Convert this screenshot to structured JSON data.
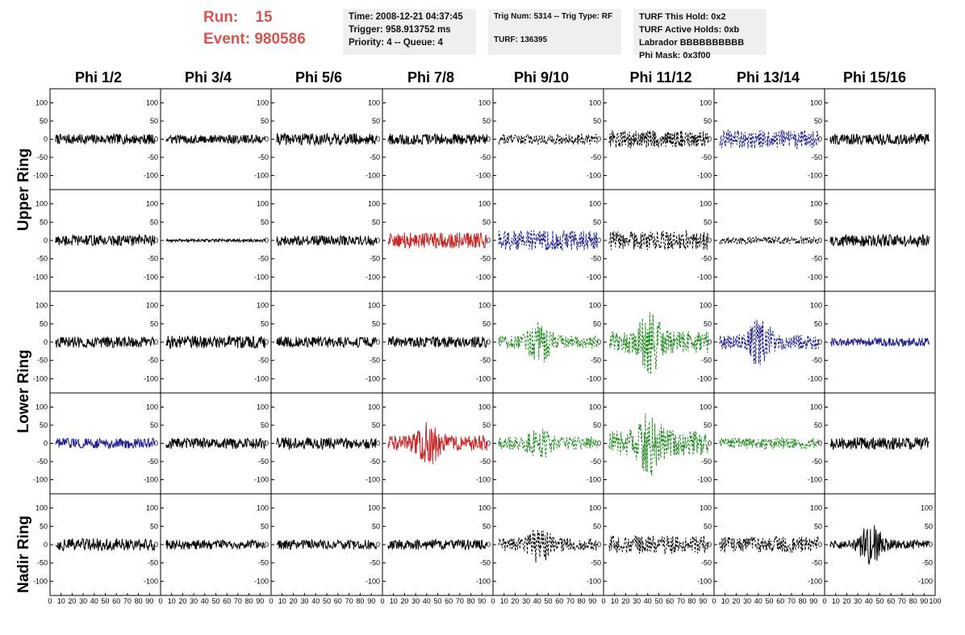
{
  "header": {
    "run_label": "Run:",
    "run_value": "15",
    "event_label": "Event:",
    "event_value": "980586",
    "time_line": "Time: 2008-12-21 04:37:45",
    "trigger_line": "Trigger: 958.913752 ms",
    "priority_line": "Priority: 4 -- Queue: 4",
    "trig_num_line": "Trig Num: 5314 -- Trig Type: RF",
    "turf_line": "TURF: 136395",
    "turf_hold_line": "TURF This Hold: 0x2",
    "turf_active_line": "TURF Active Holds: 0xb",
    "labrador_line": "Labrador BBBBBBBBBB",
    "phi_mask_line": "Phi Mask: 0x3f00"
  },
  "columns": [
    "Phi 1/2",
    "Phi 3/4",
    "Phi 5/6",
    "Phi 7/8",
    "Phi 9/10",
    "Phi 11/12",
    "Phi 13/14",
    "Phi 15/16"
  ],
  "ring_labels": [
    "Upper Ring",
    "Lower Ring",
    "Nadir Ring"
  ],
  "colors": {
    "black": "#000000",
    "blue": "#1f1f8f",
    "red": "#c62828",
    "green": "#1f8a1f"
  },
  "chart_data": {
    "type": "line",
    "rows": 5,
    "cols": 8,
    "xlim": [
      0,
      100
    ],
    "ylim": [
      -130,
      130
    ],
    "y_ticks": [
      100,
      50,
      0,
      -50,
      -100
    ],
    "x_tick_labels_row": [
      "0",
      "10",
      "20",
      "30",
      "40",
      "50",
      "60",
      "70",
      "80",
      "90",
      "100"
    ],
    "grid": false,
    "panels": [
      {
        "row": 0,
        "col": 0,
        "color": "black",
        "style": "solid",
        "amp": 14,
        "burst": 0
      },
      {
        "row": 0,
        "col": 1,
        "color": "black",
        "style": "solid",
        "amp": 12,
        "burst": 0
      },
      {
        "row": 0,
        "col": 2,
        "color": "black",
        "style": "solid",
        "amp": 16,
        "burst": 0
      },
      {
        "row": 0,
        "col": 3,
        "color": "black",
        "style": "solid",
        "amp": 15,
        "burst": 0
      },
      {
        "row": 0,
        "col": 4,
        "color": "black",
        "style": "dashed",
        "amp": 15,
        "burst": 0
      },
      {
        "row": 0,
        "col": 5,
        "color": "black",
        "style": "dashed",
        "amp": 24,
        "burst": 0
      },
      {
        "row": 0,
        "col": 6,
        "color": "blue",
        "style": "dashed",
        "amp": 26,
        "burst": 0
      },
      {
        "row": 0,
        "col": 7,
        "color": "black",
        "style": "solid",
        "amp": 15,
        "burst": 0
      },
      {
        "row": 1,
        "col": 0,
        "color": "black",
        "style": "solid",
        "amp": 15,
        "burst": 0
      },
      {
        "row": 1,
        "col": 1,
        "color": "black",
        "style": "solid",
        "amp": 4,
        "burst": 0
      },
      {
        "row": 1,
        "col": 2,
        "color": "black",
        "style": "solid",
        "amp": 14,
        "burst": 0
      },
      {
        "row": 1,
        "col": 3,
        "color": "red",
        "style": "solid",
        "amp": 22,
        "burst": 0
      },
      {
        "row": 1,
        "col": 4,
        "color": "blue",
        "style": "dashed",
        "amp": 28,
        "burst": 0
      },
      {
        "row": 1,
        "col": 5,
        "color": "black",
        "style": "dashed",
        "amp": 26,
        "burst": 0
      },
      {
        "row": 1,
        "col": 6,
        "color": "black",
        "style": "dashed",
        "amp": 10,
        "burst": 0
      },
      {
        "row": 1,
        "col": 7,
        "color": "black",
        "style": "solid",
        "amp": 17,
        "burst": 0
      },
      {
        "row": 2,
        "col": 0,
        "color": "black",
        "style": "solid",
        "amp": 15,
        "burst": 0
      },
      {
        "row": 2,
        "col": 1,
        "color": "black",
        "style": "solid",
        "amp": 17,
        "burst": 0
      },
      {
        "row": 2,
        "col": 2,
        "color": "black",
        "style": "solid",
        "amp": 15,
        "burst": 0
      },
      {
        "row": 2,
        "col": 3,
        "color": "black",
        "style": "solid",
        "amp": 15,
        "burst": 0
      },
      {
        "row": 2,
        "col": 4,
        "color": "green",
        "style": "dashed",
        "amp": 18,
        "burst": 45
      },
      {
        "row": 2,
        "col": 5,
        "color": "green",
        "style": "dashed",
        "amp": 30,
        "burst": 60
      },
      {
        "row": 2,
        "col": 6,
        "color": "blue",
        "style": "dashed",
        "amp": 20,
        "burst": 55
      },
      {
        "row": 2,
        "col": 7,
        "color": "blue",
        "style": "solid",
        "amp": 12,
        "burst": 0
      },
      {
        "row": 3,
        "col": 0,
        "color": "blue",
        "style": "solid",
        "amp": 14,
        "burst": 0
      },
      {
        "row": 3,
        "col": 1,
        "color": "black",
        "style": "solid",
        "amp": 15,
        "burst": 0
      },
      {
        "row": 3,
        "col": 2,
        "color": "black",
        "style": "solid",
        "amp": 16,
        "burst": 0
      },
      {
        "row": 3,
        "col": 3,
        "color": "red",
        "style": "solid",
        "amp": 22,
        "burst": 40
      },
      {
        "row": 3,
        "col": 4,
        "color": "green",
        "style": "dashed",
        "amp": 18,
        "burst": 30
      },
      {
        "row": 3,
        "col": 5,
        "color": "green",
        "style": "dashed",
        "amp": 35,
        "burst": 60
      },
      {
        "row": 3,
        "col": 6,
        "color": "green",
        "style": "dashed",
        "amp": 15,
        "burst": 0
      },
      {
        "row": 3,
        "col": 7,
        "color": "black",
        "style": "solid",
        "amp": 17,
        "burst": 0
      },
      {
        "row": 4,
        "col": 0,
        "color": "black",
        "style": "solid",
        "amp": 17,
        "burst": 0
      },
      {
        "row": 4,
        "col": 1,
        "color": "black",
        "style": "solid",
        "amp": 13,
        "burst": 0
      },
      {
        "row": 4,
        "col": 2,
        "color": "black",
        "style": "solid",
        "amp": 13,
        "burst": 0
      },
      {
        "row": 4,
        "col": 3,
        "color": "black",
        "style": "solid",
        "amp": 14,
        "burst": 0
      },
      {
        "row": 4,
        "col": 4,
        "color": "black",
        "style": "dashed",
        "amp": 18,
        "burst": 35
      },
      {
        "row": 4,
        "col": 5,
        "color": "black",
        "style": "dashed",
        "amp": 25,
        "burst": 0
      },
      {
        "row": 4,
        "col": 6,
        "color": "black",
        "style": "dashed",
        "amp": 22,
        "burst": 0
      },
      {
        "row": 4,
        "col": 7,
        "color": "black",
        "style": "solid",
        "amp": 12,
        "burst": 50
      }
    ]
  }
}
